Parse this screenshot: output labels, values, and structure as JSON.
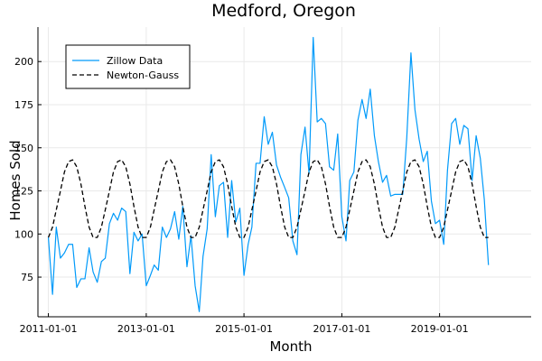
{
  "chart_data": {
    "type": "line",
    "title": "Medford, Oregon",
    "xlabel": "Month",
    "ylabel": "Homes Sold",
    "x_range": [
      "2010-10-15",
      "2020-11-15"
    ],
    "ylim": [
      52,
      220
    ],
    "x_ticks": [
      {
        "date": "2011-01-01",
        "label": "2011-01-01"
      },
      {
        "date": "2013-01-01",
        "label": "2013-01-01"
      },
      {
        "date": "2015-01-01",
        "label": "2015-01-01"
      },
      {
        "date": "2017-01-01",
        "label": "2017-01-01"
      },
      {
        "date": "2019-01-01",
        "label": "2019-01-01"
      }
    ],
    "y_ticks": [
      75,
      100,
      125,
      150,
      175,
      200
    ],
    "grid": true,
    "legend": {
      "position": "top-left",
      "entries": [
        "Zillow Data",
        "Newton-Gauss"
      ]
    },
    "series": [
      {
        "name": "Zillow Data",
        "style": "solid",
        "color": "#009AFA",
        "start": "2011-01-01",
        "frequency": "monthly",
        "values": [
          98,
          65,
          104,
          86,
          89,
          94,
          94,
          69,
          74,
          74,
          92,
          78,
          72,
          84,
          86,
          106,
          112,
          108,
          115,
          113,
          77,
          101,
          96,
          100,
          70,
          76,
          82,
          79,
          104,
          98,
          103,
          113,
          97,
          116,
          81,
          99,
          70,
          55,
          87,
          103,
          146,
          110,
          128,
          130,
          98,
          131,
          107,
          115,
          76,
          94,
          104,
          141,
          141,
          168,
          152,
          159,
          140,
          133,
          127,
          121,
          96,
          88,
          146,
          162,
          135,
          214,
          165,
          167,
          164,
          139,
          137,
          158,
          110,
          96,
          131,
          136,
          166,
          178,
          167,
          184,
          157,
          142,
          130,
          134,
          122,
          123,
          123,
          123,
          156,
          205,
          172,
          155,
          142,
          148,
          119,
          106,
          108,
          94,
          137,
          164,
          167,
          152,
          163,
          161,
          131,
          157,
          144,
          120,
          82
        ]
      },
      {
        "name": "Newton-Gauss",
        "style": "dashed",
        "color": "#000000",
        "start": "2011-01-01",
        "frequency": "monthly",
        "values": [
          98,
          104,
          114,
          125,
          136,
          142,
          143,
          139,
          129,
          116,
          104,
          98,
          98,
          104,
          114,
          125,
          136,
          142,
          143,
          139,
          129,
          116,
          104,
          98,
          98,
          104,
          114,
          125,
          136,
          142,
          143,
          139,
          129,
          116,
          104,
          98,
          98,
          104,
          114,
          125,
          136,
          142,
          143,
          139,
          129,
          116,
          104,
          98,
          98,
          104,
          114,
          125,
          136,
          142,
          143,
          139,
          129,
          116,
          104,
          98,
          98,
          104,
          114,
          125,
          136,
          142,
          143,
          139,
          129,
          116,
          104,
          98,
          98,
          104,
          114,
          125,
          136,
          142,
          143,
          139,
          129,
          116,
          104,
          98,
          98,
          104,
          114,
          125,
          136,
          142,
          143,
          139,
          129,
          116,
          104,
          98,
          98,
          104,
          114,
          125,
          136,
          142,
          143,
          139,
          129,
          116,
          104,
          98,
          98
        ]
      }
    ]
  }
}
